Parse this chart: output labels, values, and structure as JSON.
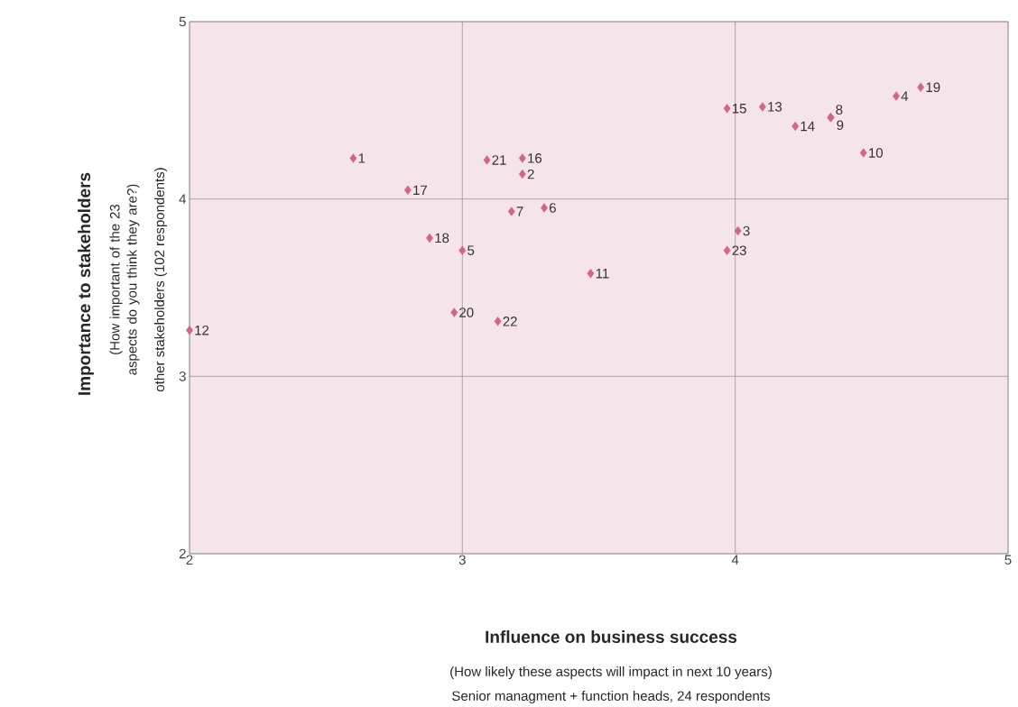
{
  "chart_data": {
    "type": "scatter",
    "xlabel": "Influence on business success",
    "ylabel": "Importance to stakeholders",
    "annotations": [
      "(How important of the 23 aspects do you think they are?)",
      "other stakeholders (102 respondents)",
      "(How likely these aspects will impact in next 10 years)",
      "Senior managment + function heads, 24 respondents",
      {
        "text": "1",
        "x": 2.6,
        "y": 4.23
      },
      {
        "text": "2",
        "x": 3.22,
        "y": 4.14
      },
      {
        "text": "3",
        "x": 4.01,
        "y": 3.82
      },
      {
        "text": "4",
        "x": 4.59,
        "y": 4.58
      },
      {
        "text": "5",
        "x": 3.0,
        "y": 3.71
      },
      {
        "text": "6",
        "x": 3.3,
        "y": 3.95
      },
      {
        "text": "7",
        "x": 3.18,
        "y": 3.93
      },
      {
        "text": "8",
        "x": 4.35,
        "y": 4.46
      },
      {
        "text": "9",
        "x": 4.35,
        "y": 4.46
      },
      {
        "text": "10",
        "x": 4.47,
        "y": 4.26
      },
      {
        "text": "11",
        "x": 3.47,
        "y": 3.58
      },
      {
        "text": "12",
        "x": 2.0,
        "y": 3.26
      },
      {
        "text": "13",
        "x": 4.1,
        "y": 4.52
      },
      {
        "text": "14",
        "x": 4.22,
        "y": 4.41
      },
      {
        "text": "15",
        "x": 3.97,
        "y": 4.51
      },
      {
        "text": "16",
        "x": 3.22,
        "y": 4.23
      },
      {
        "text": "17",
        "x": 2.8,
        "y": 4.05
      },
      {
        "text": "18",
        "x": 2.88,
        "y": 3.78
      },
      {
        "text": "19",
        "x": 4.68,
        "y": 4.63
      },
      {
        "text": "20",
        "x": 2.97,
        "y": 3.36
      },
      {
        "text": "21",
        "x": 3.09,
        "y": 4.22
      },
      {
        "text": "22",
        "x": 3.13,
        "y": 3.31
      },
      {
        "text": "23",
        "x": 3.97,
        "y": 3.71
      }
    ],
    "xlim": [
      2,
      5
    ],
    "ylim": [
      2,
      5
    ],
    "xticks": [
      2,
      3,
      4,
      5
    ],
    "yticks": [
      2,
      3,
      4,
      5
    ],
    "grid": true,
    "marker": "diamond",
    "series": [
      {
        "color": "#d0668f",
        "x": [
          2.6,
          3.22,
          4.01,
          4.59,
          3.0,
          3.3,
          3.18,
          4.35,
          4.35,
          4.47,
          3.47,
          2.0,
          4.1,
          4.22,
          3.97,
          3.22,
          2.8,
          2.88,
          4.68,
          2.97,
          3.09,
          3.13,
          3.97
        ],
        "values": [
          4.23,
          4.14,
          3.82,
          4.58,
          3.71,
          3.95,
          3.93,
          4.46,
          4.46,
          4.26,
          3.58,
          3.26,
          4.52,
          4.41,
          4.51,
          4.23,
          4.05,
          3.78,
          4.63,
          3.36,
          4.22,
          3.31,
          3.71
        ]
      }
    ]
  }
}
